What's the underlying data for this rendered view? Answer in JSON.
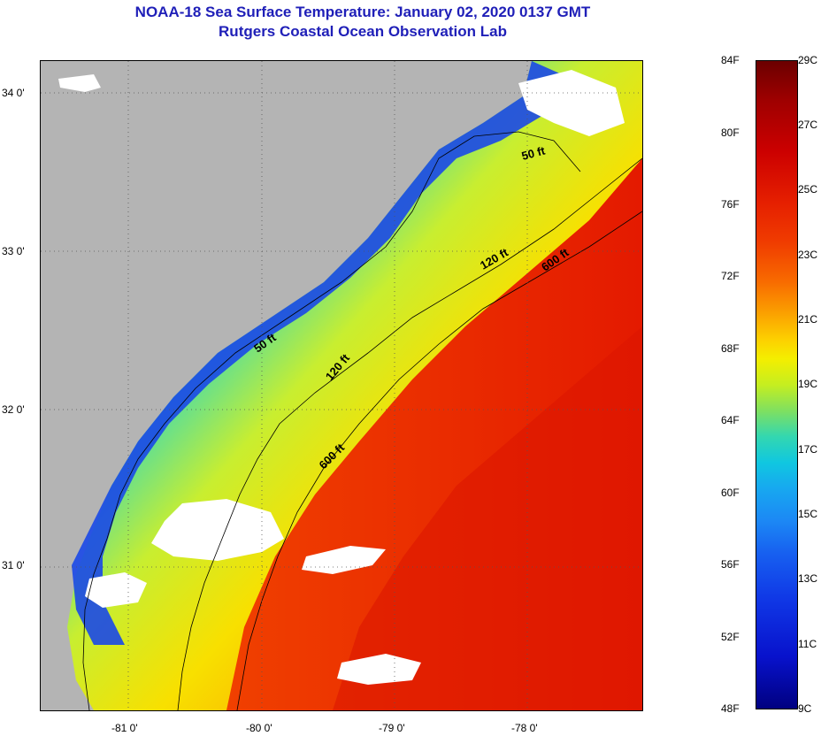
{
  "header": {
    "title": "NOAA-18 Sea Surface Temperature:  January 02, 2020 0137 GMT",
    "subtitle": "Rutgers Coastal Ocean Observation Lab"
  },
  "map": {
    "lat_labels": [
      "34 0'",
      "33 0'",
      "32 0'",
      "31 0'"
    ],
    "lon_labels": [
      "-81 0'",
      "-80 0'",
      "-79 0'",
      "-78 0'"
    ],
    "isobaths": [
      {
        "name": "50 ft",
        "labels": [
          "50 ft",
          "50 ft"
        ]
      },
      {
        "name": "120 ft",
        "labels": [
          "120 ft",
          "120 ft"
        ]
      },
      {
        "name": "600 ft",
        "labels": [
          "600 ft",
          "600 ft"
        ]
      }
    ],
    "colors": {
      "land": "#b4b4b4",
      "cloud": "#ffffff",
      "cold_nearshore": "#1a40e8",
      "mid_shelf": "#f0e000",
      "offshore": "#e82000"
    }
  },
  "colorbar": {
    "fahrenheit_labels": [
      "84F",
      "80F",
      "76F",
      "72F",
      "68F",
      "64F",
      "60F",
      "56F",
      "52F",
      "48F"
    ],
    "celsius_labels": [
      "29C",
      "27C",
      "25C",
      "23C",
      "21C",
      "19C",
      "17C",
      "15C",
      "13C",
      "11C",
      "9C"
    ]
  }
}
